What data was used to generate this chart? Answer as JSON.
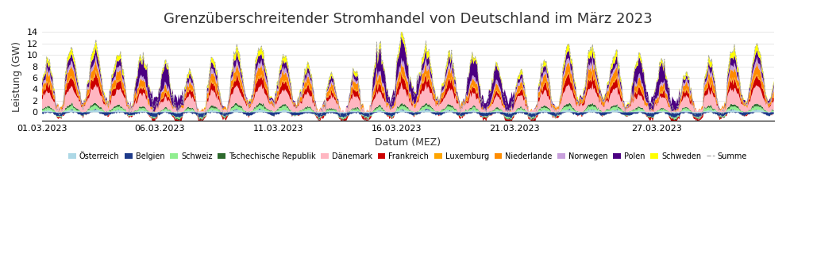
{
  "title": "Grenzüberschreitender Stromhandel von Deutschland im März 2023",
  "xlabel": "Datum (MEZ)",
  "ylabel": "Leistung (GW)",
  "ylim": [
    -1.5,
    14
  ],
  "yticks": [
    0,
    2,
    4,
    6,
    8,
    10,
    12,
    14
  ],
  "xtick_labels": [
    "01.03.2023",
    "06.03.2023",
    "11.03.2023",
    "16.03.2023",
    "21.03.2023",
    "27.03.2023"
  ],
  "xtick_positions": [
    0,
    120,
    240,
    360,
    480,
    624
  ],
  "n_hours": 744,
  "countries": [
    "Österreich",
    "Belgien",
    "Schweiz",
    "Tschechische Republik",
    "Dänemark",
    "Frankreich",
    "Luxemburg",
    "Niederlande",
    "Norwegen",
    "Polen",
    "Schweden"
  ],
  "colors": {
    "Österreich": "#add8e6",
    "Belgien": "#1e3a8a",
    "Schweiz": "#90ee90",
    "Tschechische Republik": "#2d6a2d",
    "Dänemark": "#ffb6c1",
    "Frankreich": "#cc0000",
    "Luxemburg": "#ffa500",
    "Niederlande": "#ff8c00",
    "Norwegen": "#c8a0dc",
    "Polen": "#4b0082",
    "Schweden": "#ffff00"
  },
  "background_color": "#ffffff",
  "grid_color": "#dddddd",
  "title_fontsize": 13,
  "axis_fontsize": 9,
  "tick_fontsize": 8
}
